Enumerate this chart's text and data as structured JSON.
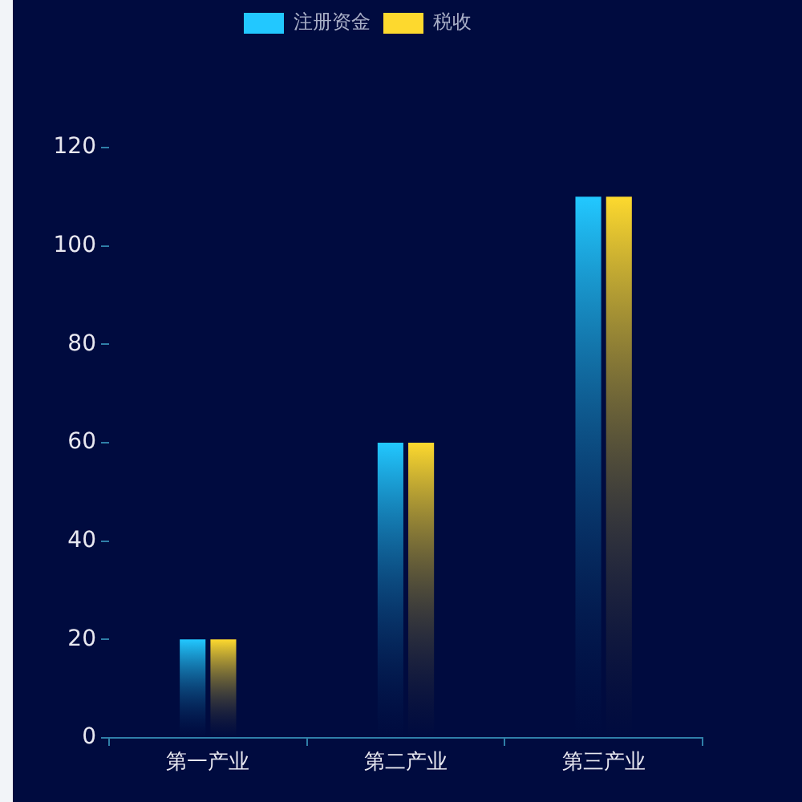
{
  "chart_data": {
    "type": "bar",
    "categories": [
      "第一产业",
      "第二产业",
      "第三产业"
    ],
    "series": [
      {
        "name": "注册资金",
        "color": "#22c8ff",
        "values": [
          20,
          60,
          110
        ]
      },
      {
        "name": "税收",
        "color": "#fdd92e",
        "values": [
          20,
          60,
          110
        ]
      }
    ],
    "ylim": [
      0,
      120
    ],
    "yticks": [
      0,
      20,
      40,
      60,
      80,
      100,
      120
    ],
    "grid": false,
    "legend": "top"
  }
}
